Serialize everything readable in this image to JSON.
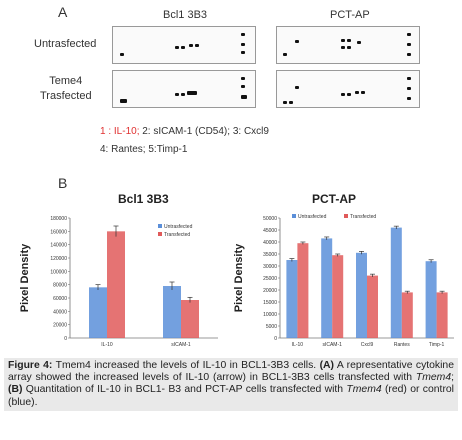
{
  "panel_a": {
    "letter": "A",
    "col_heads": [
      "Bcl1 3B3",
      "PCT-AP"
    ],
    "row_labels": [
      "Untrasfected",
      "Teme4\nTrasfected"
    ],
    "legend_line1_red": "1 : IL-10;",
    "legend_line1_rest": "2: sICAM-1 (CD54);  3: Cxcl9",
    "legend_line2": "4: Rantes; 5:Timp-1"
  },
  "panel_b": {
    "letter": "B"
  },
  "chart_data": [
    {
      "type": "bar",
      "title": "Bcl1 3B3",
      "ylabel": "Pixel Density",
      "categories": [
        "IL-10",
        "sICAM-1"
      ],
      "series": [
        {
          "name": "Untrasfected",
          "values": [
            76000,
            78000
          ],
          "color": "#5b8fd9"
        },
        {
          "name": "Transfected",
          "values": [
            160000,
            57000
          ],
          "color": "#e05a5a"
        }
      ],
      "errors": [
        [
          4000,
          6000
        ],
        [
          8000,
          4000
        ]
      ],
      "ylim": [
        0,
        180000
      ],
      "yticks": [
        "0",
        "20000",
        "40000",
        "60000",
        "80000",
        "100000",
        "120000",
        "140000",
        "160000",
        "180000"
      ],
      "grid": false,
      "legend": "top-right"
    },
    {
      "type": "bar",
      "title": "PCT-AP",
      "ylabel": "Pixel Density",
      "categories": [
        "IL-10",
        "sICAM-1",
        "Cxcl9",
        "Rantes",
        "Timp-1"
      ],
      "series": [
        {
          "name": "Untrasfected",
          "values": [
            32500,
            41500,
            35500,
            46000,
            32000
          ],
          "color": "#5b8fd9"
        },
        {
          "name": "Transfected",
          "values": [
            39500,
            34500,
            26000,
            19000,
            19000
          ],
          "color": "#e05a5a"
        }
      ],
      "errors": [
        [
          600,
          600,
          600,
          600,
          600
        ],
        [
          500,
          500,
          600,
          500,
          500
        ]
      ],
      "ylim": [
        0,
        50000
      ],
      "yticks": [
        "0",
        "5000",
        "10000",
        "15000",
        "20000",
        "25000",
        "30000",
        "35000",
        "40000",
        "45000",
        "50000"
      ],
      "grid": false,
      "legend": "top"
    }
  ],
  "caption": {
    "label": "Figure 4:",
    "t1": " Tmem4 increased the levels of IL-10 in BCL1-3B3 cells. ",
    "a": "(A)",
    "t2": " A representative cytokine array showed the increased levels of IL-10 (arrow) in BCL1-3B3 cells transfected with ",
    "gene1": "Tmem4",
    "t3": "; ",
    "b": "(B)",
    "t4": " Quantitation of IL-10 in BCL1- B3 and PCT-AP cells transfected with ",
    "gene2": "Tmem4",
    "t5": " (red) or control (blue)."
  }
}
